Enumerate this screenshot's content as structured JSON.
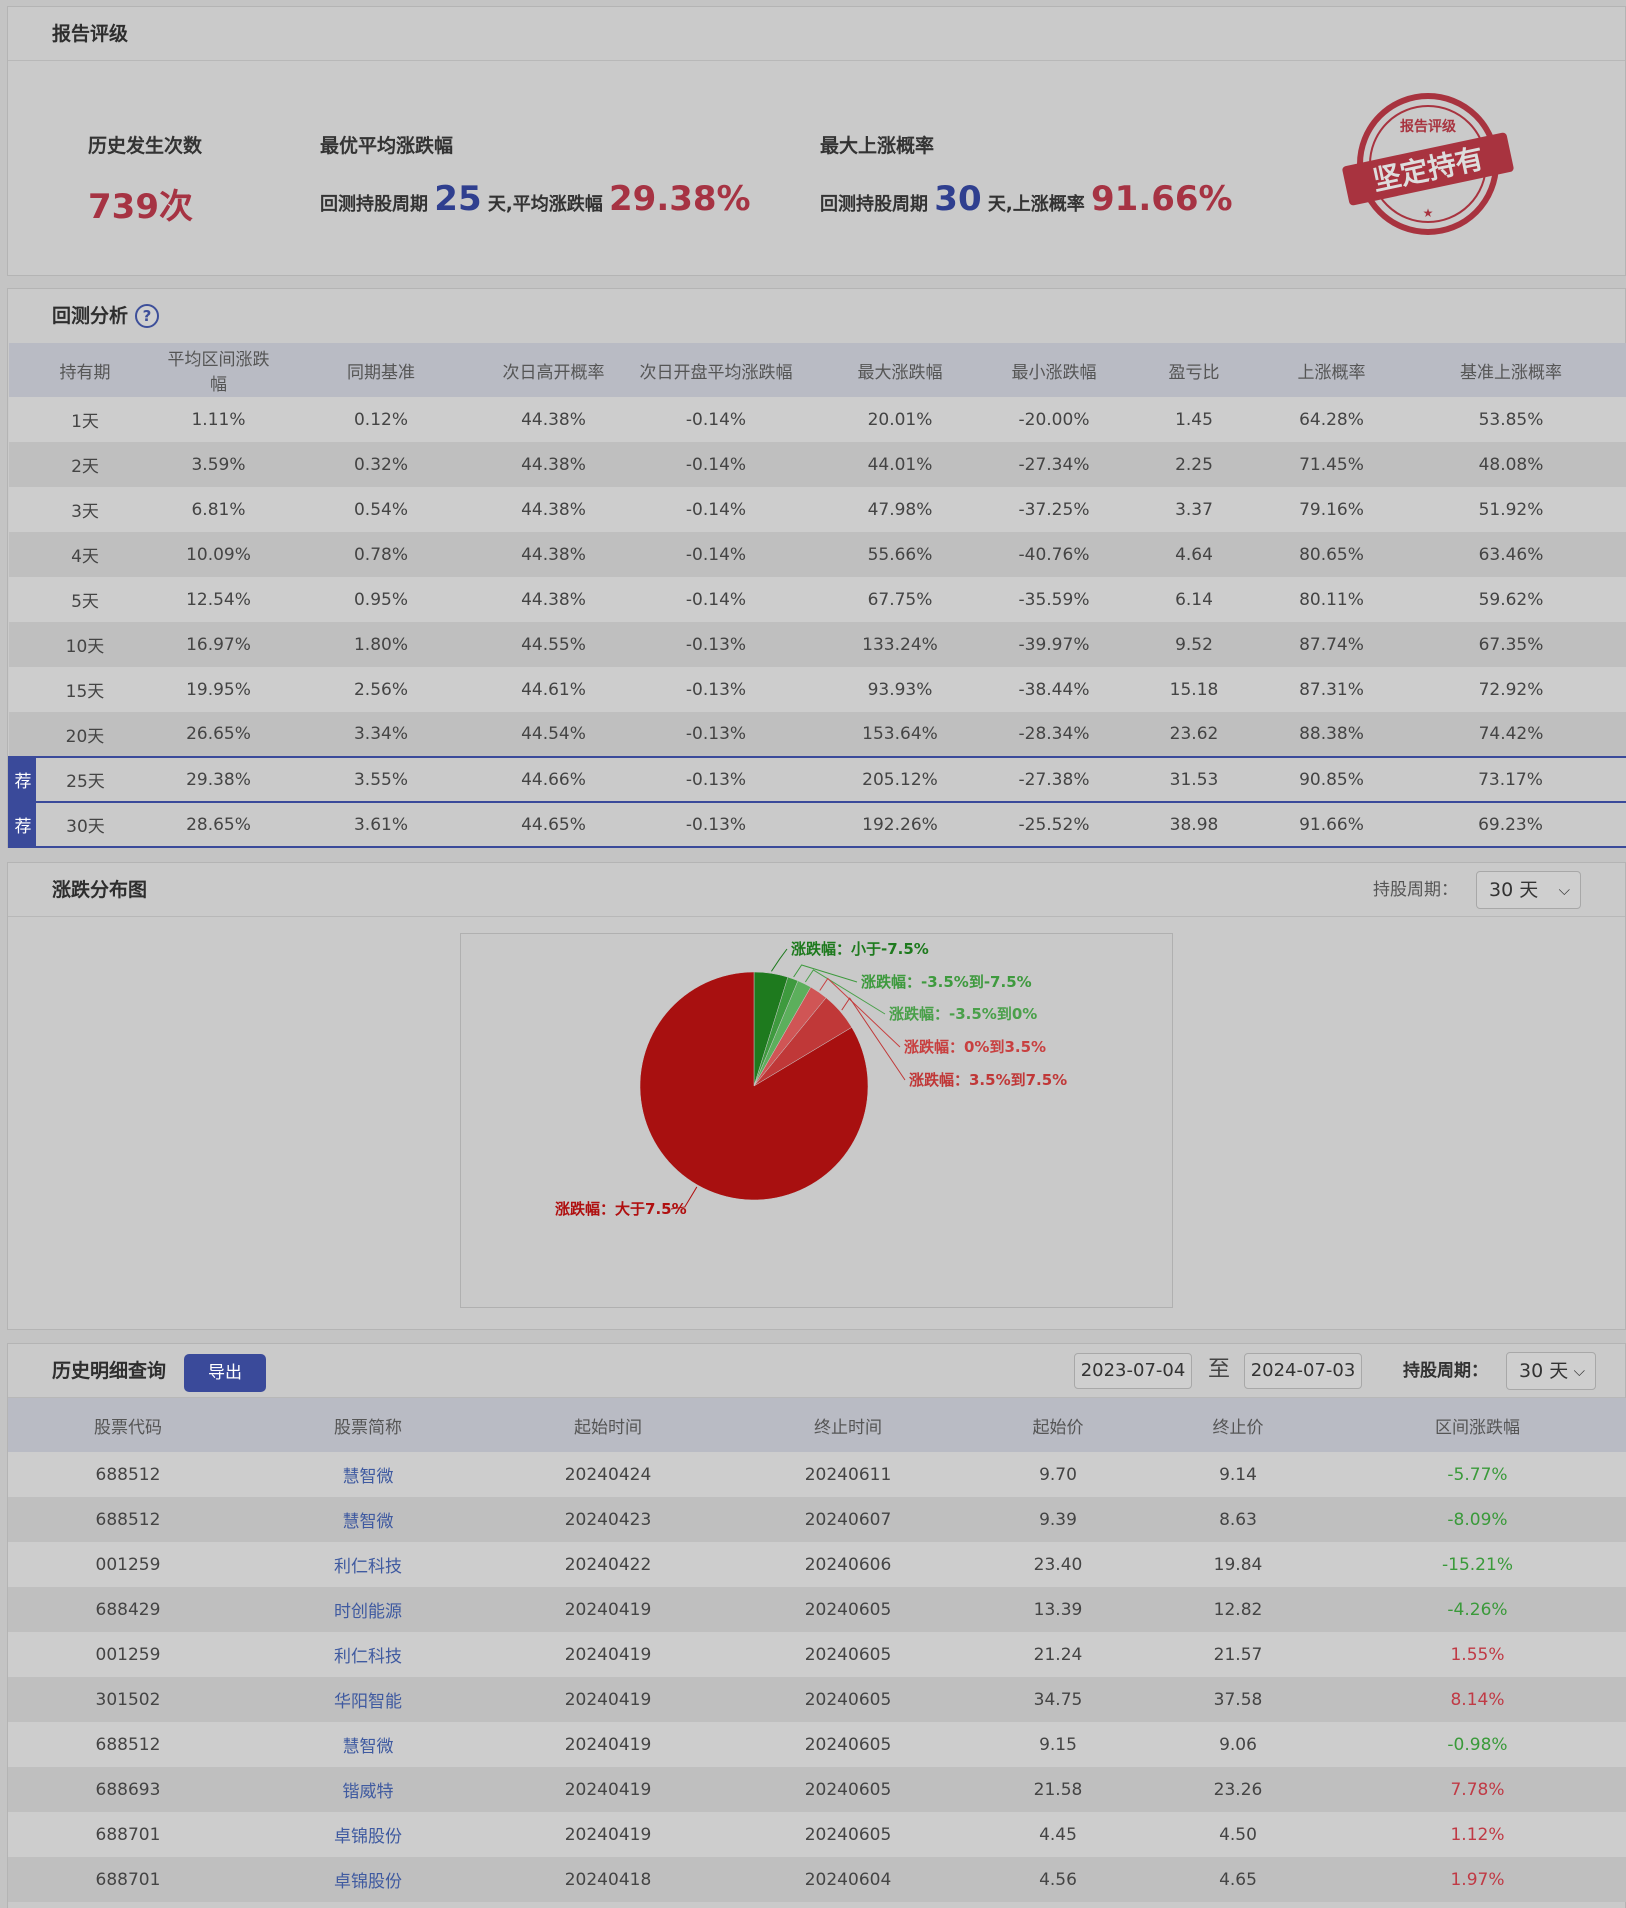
{
  "rating": {
    "title": "报告评级",
    "occurrences_label": "历史发生次数",
    "occurrences_value": "739次",
    "best_avg_label": "最优平均涨跌幅",
    "best_avg_prefix": "回测持股周期",
    "best_avg_days": "25",
    "best_avg_mid": "天,平均涨跌幅",
    "best_avg_value": "29.38%",
    "max_prob_label": "最大上涨概率",
    "max_prob_prefix": "回测持股周期",
    "max_prob_days": "30",
    "max_prob_mid": "天,上涨概率",
    "max_prob_value": "91.66%",
    "stamp_text": "坚定持有",
    "stamp_top": "报告评级"
  },
  "backtest": {
    "title": "回测分析",
    "help_glyph": "?",
    "columns": [
      "持有期",
      "平均区间涨跌幅",
      "同期基准",
      "次日高开概率",
      "次日开盘平均涨跌幅",
      "最大涨跌幅",
      "最小涨跌幅",
      "盈亏比",
      "上涨概率",
      "基准上涨概率"
    ],
    "badge": "荐",
    "rows": [
      {
        "rec": false,
        "cells": [
          "1天",
          "1.11%",
          "0.12%",
          "44.38%",
          "-0.14%",
          "20.01%",
          "-20.00%",
          "1.45",
          "64.28%",
          "53.85%"
        ]
      },
      {
        "rec": false,
        "cells": [
          "2天",
          "3.59%",
          "0.32%",
          "44.38%",
          "-0.14%",
          "44.01%",
          "-27.34%",
          "2.25",
          "71.45%",
          "48.08%"
        ]
      },
      {
        "rec": false,
        "cells": [
          "3天",
          "6.81%",
          "0.54%",
          "44.38%",
          "-0.14%",
          "47.98%",
          "-37.25%",
          "3.37",
          "79.16%",
          "51.92%"
        ]
      },
      {
        "rec": false,
        "cells": [
          "4天",
          "10.09%",
          "0.78%",
          "44.38%",
          "-0.14%",
          "55.66%",
          "-40.76%",
          "4.64",
          "80.65%",
          "63.46%"
        ]
      },
      {
        "rec": false,
        "cells": [
          "5天",
          "12.54%",
          "0.95%",
          "44.38%",
          "-0.14%",
          "67.75%",
          "-35.59%",
          "6.14",
          "80.11%",
          "59.62%"
        ]
      },
      {
        "rec": false,
        "cells": [
          "10天",
          "16.97%",
          "1.80%",
          "44.55%",
          "-0.13%",
          "133.24%",
          "-39.97%",
          "9.52",
          "87.74%",
          "67.35%"
        ]
      },
      {
        "rec": false,
        "cells": [
          "15天",
          "19.95%",
          "2.56%",
          "44.61%",
          "-0.13%",
          "93.93%",
          "-38.44%",
          "15.18",
          "87.31%",
          "72.92%"
        ]
      },
      {
        "rec": false,
        "cells": [
          "20天",
          "26.65%",
          "3.34%",
          "44.54%",
          "-0.13%",
          "153.64%",
          "-28.34%",
          "23.62",
          "88.38%",
          "74.42%"
        ]
      },
      {
        "rec": true,
        "cells": [
          "25天",
          "29.38%",
          "3.55%",
          "44.66%",
          "-0.13%",
          "205.12%",
          "-27.38%",
          "31.53",
          "90.85%",
          "73.17%"
        ]
      },
      {
        "rec": true,
        "cells": [
          "30天",
          "28.65%",
          "3.61%",
          "44.65%",
          "-0.13%",
          "192.26%",
          "-25.52%",
          "38.98",
          "91.66%",
          "69.23%"
        ]
      }
    ]
  },
  "distribution": {
    "title": "涨跌分布图",
    "hold_label": "持股周期：",
    "hold_value": "30 天"
  },
  "chart_data": {
    "type": "pie",
    "slices": [
      {
        "label": "涨跌幅：小于-7.5%",
        "value": 4.8,
        "color": "#1e7a1e",
        "text_color": "#1e7a1e"
      },
      {
        "label": "涨跌幅：-3.5%到-7.5%",
        "value": 1.5,
        "color": "#3e9a3e",
        "text_color": "#3e9a3e"
      },
      {
        "label": "涨跌幅：-3.5%到0%",
        "value": 2.0,
        "color": "#5caf5c",
        "text_color": "#4aa04a"
      },
      {
        "label": "涨跌幅：0%到3.5%",
        "value": 2.6,
        "color": "#d05555",
        "text_color": "#c84040"
      },
      {
        "label": "涨跌幅：3.5%到7.5%",
        "value": 5.5,
        "color": "#c03838",
        "text_color": "#c03838"
      },
      {
        "label": "涨跌幅：大于7.5%",
        "value": 83.6,
        "color": "#a81010",
        "text_color": "#b01010"
      }
    ]
  },
  "history": {
    "title": "历史明细查询",
    "export_label": "导出",
    "date_from": "2023-07-04",
    "date_sep": "至",
    "date_to": "2024-07-03",
    "hold_label": "持股周期：",
    "hold_value": "30 天",
    "columns": [
      "股票代码",
      "股票简称",
      "起始时间",
      "终止时间",
      "起始价",
      "终止价",
      "区间涨跌幅"
    ],
    "rows": [
      {
        "code": "688512",
        "name": "慧智微",
        "start": "20240424",
        "end": "20240611",
        "p0": "9.70",
        "p1": "9.14",
        "chg": "-5.77%",
        "dir": "neg"
      },
      {
        "code": "688512",
        "name": "慧智微",
        "start": "20240423",
        "end": "20240607",
        "p0": "9.39",
        "p1": "8.63",
        "chg": "-8.09%",
        "dir": "neg"
      },
      {
        "code": "001259",
        "name": "利仁科技",
        "start": "20240422",
        "end": "20240606",
        "p0": "23.40",
        "p1": "19.84",
        "chg": "-15.21%",
        "dir": "neg"
      },
      {
        "code": "688429",
        "name": "时创能源",
        "start": "20240419",
        "end": "20240605",
        "p0": "13.39",
        "p1": "12.82",
        "chg": "-4.26%",
        "dir": "neg"
      },
      {
        "code": "001259",
        "name": "利仁科技",
        "start": "20240419",
        "end": "20240605",
        "p0": "21.24",
        "p1": "21.57",
        "chg": "1.55%",
        "dir": "pos"
      },
      {
        "code": "301502",
        "name": "华阳智能",
        "start": "20240419",
        "end": "20240605",
        "p0": "34.75",
        "p1": "37.58",
        "chg": "8.14%",
        "dir": "pos"
      },
      {
        "code": "688512",
        "name": "慧智微",
        "start": "20240419",
        "end": "20240605",
        "p0": "9.15",
        "p1": "9.06",
        "chg": "-0.98%",
        "dir": "neg"
      },
      {
        "code": "688693",
        "name": "锴威特",
        "start": "20240419",
        "end": "20240605",
        "p0": "21.58",
        "p1": "23.26",
        "chg": "7.78%",
        "dir": "pos"
      },
      {
        "code": "688701",
        "name": "卓锦股份",
        "start": "20240419",
        "end": "20240605",
        "p0": "4.45",
        "p1": "4.50",
        "chg": "1.12%",
        "dir": "pos"
      },
      {
        "code": "688701",
        "name": "卓锦股份",
        "start": "20240418",
        "end": "20240604",
        "p0": "4.56",
        "p1": "4.65",
        "chg": "1.97%",
        "dir": "pos"
      }
    ]
  }
}
